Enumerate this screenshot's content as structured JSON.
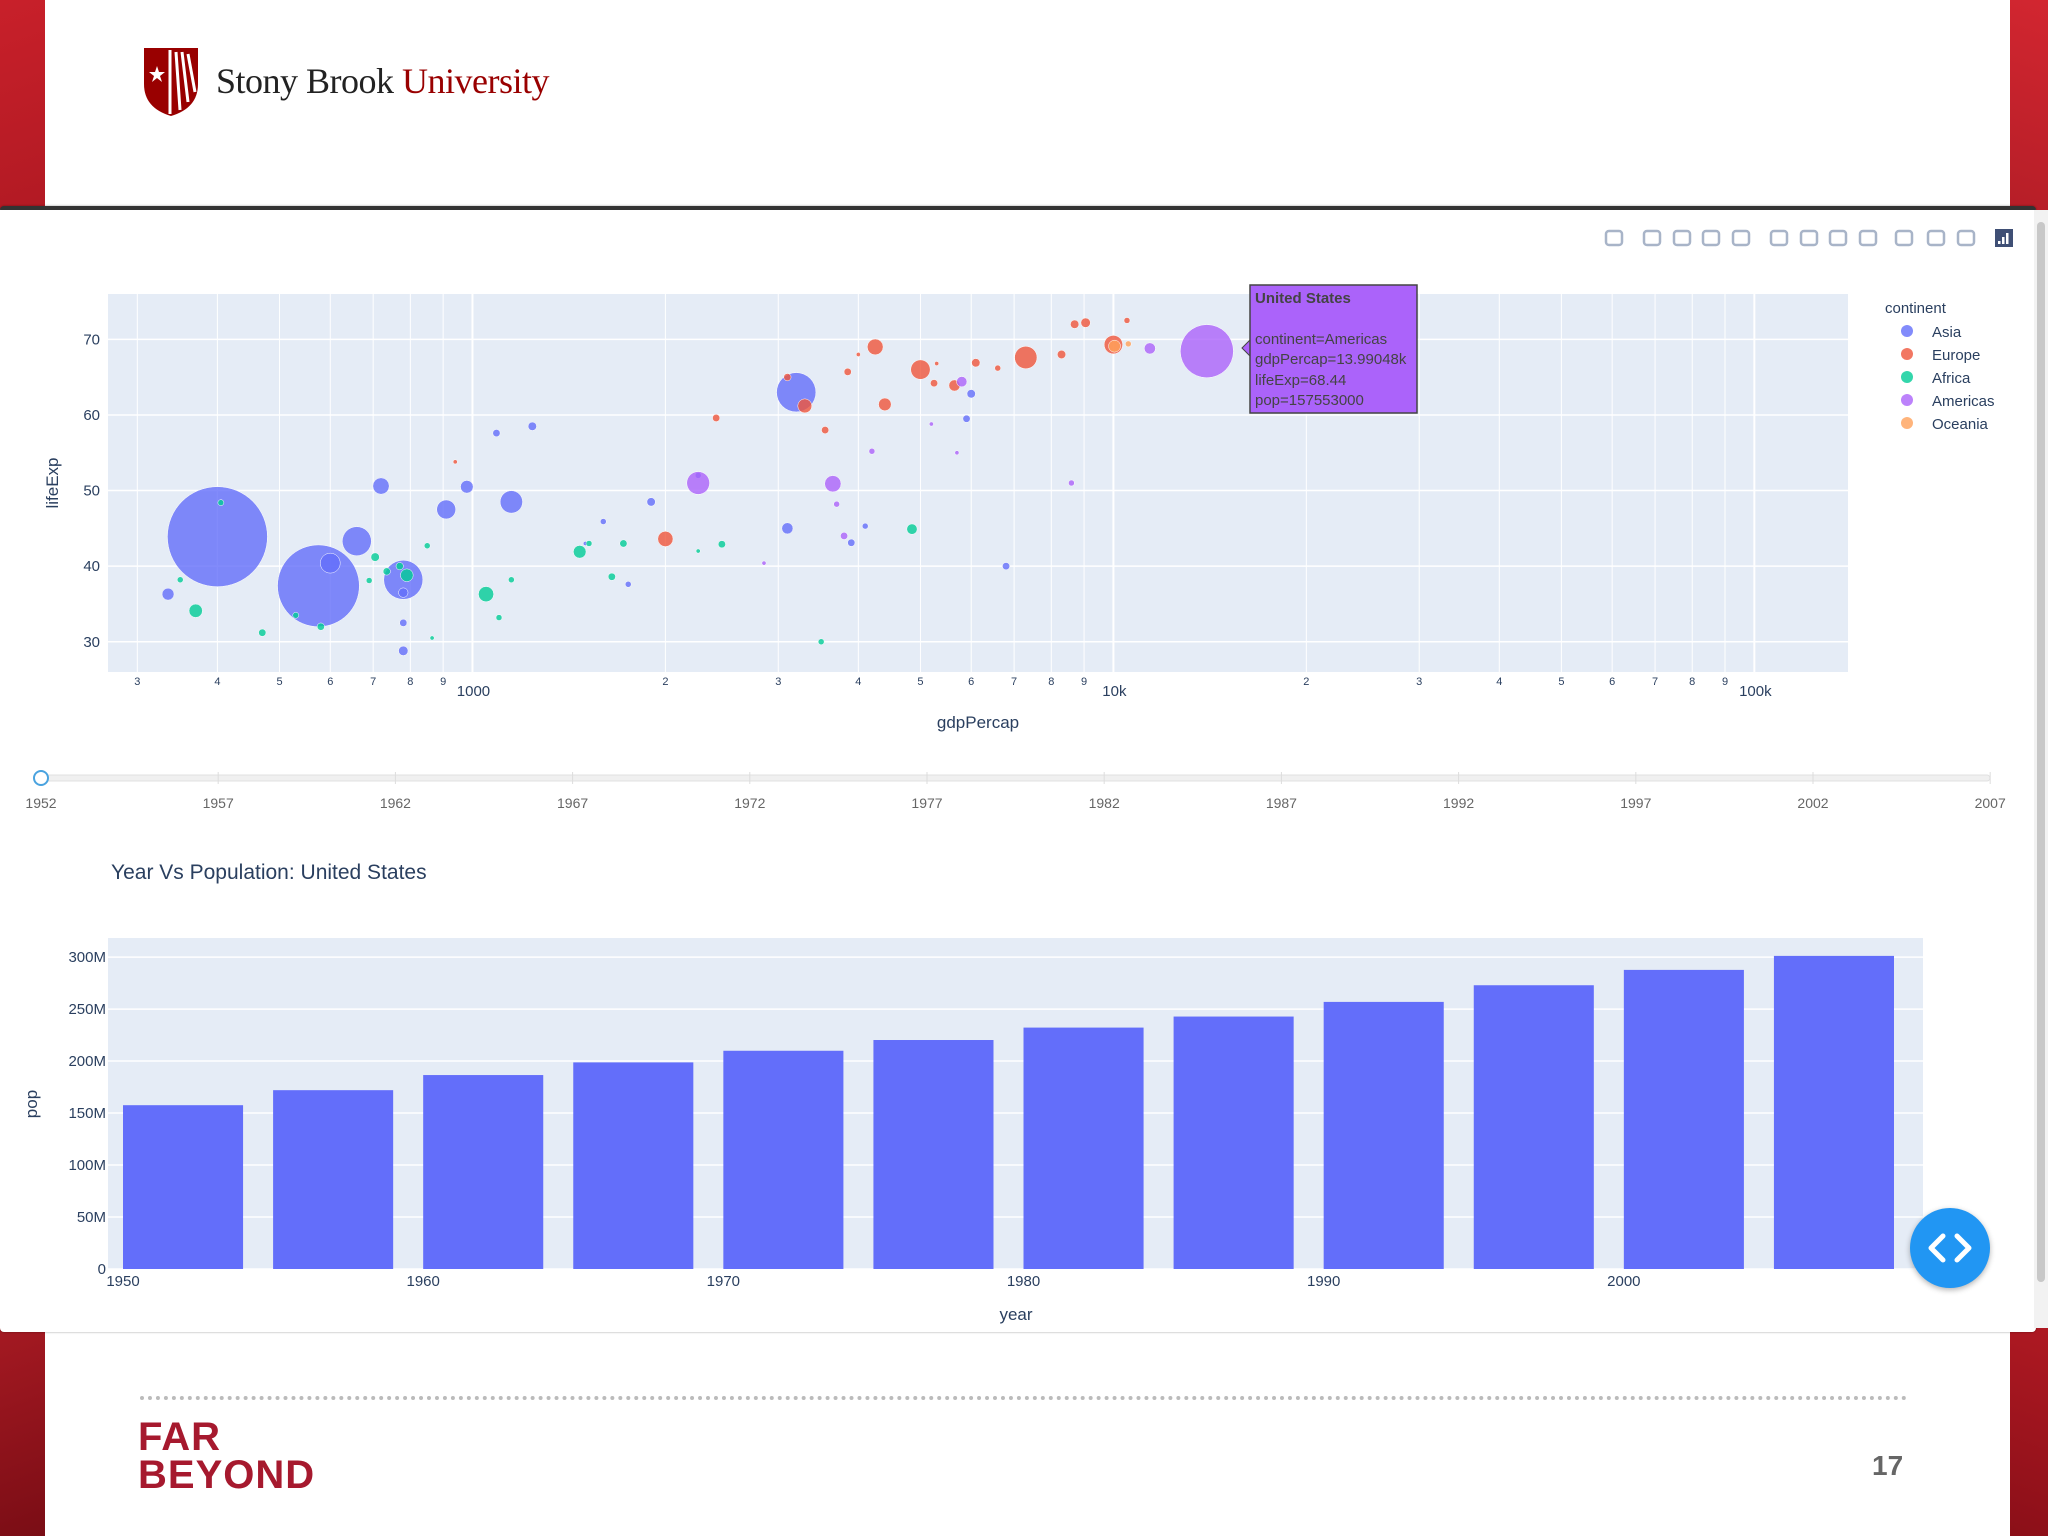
{
  "branding": {
    "name_part1": "Stony Brook",
    "name_part2": "University",
    "footer_line1": "FAR",
    "footer_line2": "BEYOND",
    "page_number": "17"
  },
  "toolbar": {
    "icons": [
      "camera-icon",
      "zoom-icon",
      "pan-icon",
      "box-select-icon",
      "lasso-icon",
      "zoom-in-icon",
      "zoom-out-icon",
      "autoscale-icon",
      "reset-axes-icon",
      "spike-lines-icon",
      "hover-closest-icon",
      "hover-compare-icon",
      "plotly-logo-icon"
    ]
  },
  "legend": {
    "title": "continent",
    "items": [
      {
        "label": "Asia",
        "color": "#636efa"
      },
      {
        "label": "Europe",
        "color": "#ef553b"
      },
      {
        "label": "Africa",
        "color": "#00cc96"
      },
      {
        "label": "Americas",
        "color": "#ab63fa"
      },
      {
        "label": "Oceania",
        "color": "#ffa15a"
      }
    ]
  },
  "tooltip": {
    "title": "United States",
    "line1": "continent=Americas",
    "line2": "gdpPercap=13.99048k",
    "line3": "lifeExp=68.44",
    "line4": "pop=157553000"
  },
  "slider": {
    "years": [
      "1952",
      "1957",
      "1962",
      "1967",
      "1972",
      "1977",
      "1982",
      "1987",
      "1992",
      "1997",
      "2002",
      "2007"
    ],
    "current": "1952"
  },
  "chart_data": [
    {
      "type": "scatter",
      "xlabel": "gdpPercap",
      "ylabel": "lifeExp",
      "xscale": "log",
      "xlim": [
        270,
        140000
      ],
      "ylim": [
        26,
        76
      ],
      "x_major_ticks": [
        {
          "v": 1000,
          "label": "1000"
        },
        {
          "v": 10000,
          "label": "10k"
        },
        {
          "v": 100000,
          "label": "100k"
        }
      ],
      "x_minor_ticks": [
        {
          "v": 300,
          "label": "3"
        },
        {
          "v": 400,
          "label": "4"
        },
        {
          "v": 500,
          "label": "5"
        },
        {
          "v": 600,
          "label": "6"
        },
        {
          "v": 700,
          "label": "7"
        },
        {
          "v": 800,
          "label": "8"
        },
        {
          "v": 900,
          "label": "9"
        },
        {
          "v": 2000,
          "label": "2"
        },
        {
          "v": 3000,
          "label": "3"
        },
        {
          "v": 4000,
          "label": "4"
        },
        {
          "v": 5000,
          "label": "5"
        },
        {
          "v": 6000,
          "label": "6"
        },
        {
          "v": 7000,
          "label": "7"
        },
        {
          "v": 8000,
          "label": "8"
        },
        {
          "v": 9000,
          "label": "9"
        },
        {
          "v": 20000,
          "label": "2"
        },
        {
          "v": 30000,
          "label": "3"
        },
        {
          "v": 40000,
          "label": "4"
        },
        {
          "v": 50000,
          "label": "5"
        },
        {
          "v": 60000,
          "label": "6"
        },
        {
          "v": 70000,
          "label": "7"
        },
        {
          "v": 80000,
          "label": "8"
        },
        {
          "v": 90000,
          "label": "9"
        }
      ],
      "y_ticks": [
        30,
        40,
        50,
        60,
        70
      ],
      "series": [
        {
          "name": "Asia",
          "color": "#636efa",
          "points": [
            [
              400,
              43.9,
              556
            ],
            [
              575,
              37.4,
              372
            ],
            [
              780,
              38.2,
              85
            ],
            [
              660,
              43.3,
              47
            ],
            [
              600,
              40.4,
              22
            ],
            [
              335,
              36.3,
              8
            ],
            [
              910,
              47.5,
              20
            ],
            [
              1150,
              48.5,
              28
            ],
            [
              980,
              50.5,
              9
            ],
            [
              720,
              50.6,
              15
            ],
            [
              1090,
              57.6,
              3
            ],
            [
              1240,
              58.5,
              4
            ],
            [
              3200,
              63.0,
              86
            ],
            [
              3100,
              45.0,
              7
            ],
            [
              780,
              32.5,
              3
            ],
            [
              780,
              28.8,
              5
            ],
            [
              3900,
              43.1,
              3
            ],
            [
              4100,
              45.3,
              2
            ],
            [
              6000,
              62.8,
              4
            ],
            [
              1900,
              48.5,
              4
            ],
            [
              1600,
              45.9,
              2
            ],
            [
              2250,
              52.0,
              2
            ],
            [
              5900,
              59.5,
              3
            ],
            [
              6800,
              40.0,
              3
            ],
            [
              780,
              36.5,
              5
            ],
            [
              1500,
              43.0,
              1
            ],
            [
              1750,
              37.6,
              2
            ]
          ]
        },
        {
          "name": "Europe",
          "color": "#ef553b",
          "points": [
            [
              3300,
              61.2,
              11
            ],
            [
              3850,
              65.7,
              3
            ],
            [
              4250,
              69.0,
              14
            ],
            [
              4400,
              61.4,
              9
            ],
            [
              5000,
              66.0,
              21
            ],
            [
              5250,
              64.2,
              3
            ],
            [
              5650,
              63.9,
              7
            ],
            [
              5300,
              66.8,
              1
            ],
            [
              6100,
              66.9,
              4
            ],
            [
              6600,
              66.2,
              2
            ],
            [
              7300,
              67.6,
              28
            ],
            [
              8300,
              68.0,
              4
            ],
            [
              8700,
              72.0,
              4
            ],
            [
              9050,
              72.2,
              5
            ],
            [
              10000,
              69.3,
              19
            ],
            [
              10500,
              72.5,
              2
            ],
            [
              3550,
              58.0,
              3
            ],
            [
              2000,
              43.6,
              13
            ],
            [
              2400,
              59.6,
              3
            ],
            [
              940,
              53.8,
              1
            ],
            [
              3100,
              65.0,
              3
            ],
            [
              4000,
              68.0,
              1
            ]
          ]
        },
        {
          "name": "Africa",
          "color": "#00cc96",
          "points": [
            [
              370,
              34.1,
              10
            ],
            [
              350,
              38.2,
              2
            ],
            [
              470,
              31.2,
              3
            ],
            [
              580,
              32.0,
              3
            ],
            [
              705,
              41.2,
              4
            ],
            [
              735,
              39.3,
              3
            ],
            [
              770,
              40.0,
              3
            ],
            [
              790,
              38.8,
              9
            ],
            [
              850,
              42.7,
              2
            ],
            [
              1050,
              36.3,
              13
            ],
            [
              1150,
              38.2,
              2
            ],
            [
              1470,
              41.9,
              9
            ],
            [
              1520,
              43.0,
              2
            ],
            [
              1720,
              43.0,
              3
            ],
            [
              1650,
              38.6,
              3
            ],
            [
              2450,
              42.9,
              3
            ],
            [
              3500,
              30.0,
              2
            ],
            [
              4850,
              44.9,
              6
            ],
            [
              690,
              38.1,
              2
            ],
            [
              1100,
              33.2,
              2
            ],
            [
              530,
              33.5,
              2
            ],
            [
              405,
              48.4,
              2
            ],
            [
              865,
              30.5,
              1
            ],
            [
              2250,
              42.0,
              1
            ]
          ]
        },
        {
          "name": "Americas",
          "color": "#ab63fa",
          "points": [
            [
              13990,
              68.44,
              157
            ],
            [
              11400,
              68.8,
              7
            ],
            [
              2250,
              51.0,
              29
            ],
            [
              3650,
              50.9,
              15
            ],
            [
              3700,
              48.2,
              2
            ],
            [
              3800,
              44.0,
              3
            ],
            [
              5800,
              64.4,
              6
            ],
            [
              4200,
              55.2,
              2
            ],
            [
              5200,
              58.8,
              1
            ],
            [
              2850,
              40.4,
              1
            ],
            [
              8600,
              51.0,
              2
            ],
            [
              5700,
              55.0,
              1
            ]
          ]
        },
        {
          "name": "Oceania",
          "color": "#ffa15a",
          "points": [
            [
              10040,
              69.1,
              8
            ],
            [
              10550,
              69.4,
              2
            ]
          ]
        }
      ]
    },
    {
      "type": "bar",
      "title": "Year Vs Population: United States",
      "xlabel": "year",
      "ylabel": "pop",
      "categories": [
        1952,
        1957,
        1962,
        1967,
        1972,
        1977,
        1982,
        1987,
        1992,
        1997,
        2002,
        2007
      ],
      "values": [
        157553000,
        171984000,
        186538000,
        198712000,
        209896000,
        220239000,
        232187835,
        242803533,
        256894189,
        272911760,
        287675526,
        301139947
      ],
      "xlim": [
        1949.5,
        2009.5
      ],
      "ylim": [
        0,
        302000000
      ],
      "x_ticks": [
        {
          "v": 1950,
          "label": "1950"
        },
        {
          "v": 1960,
          "label": "1960"
        },
        {
          "v": 1970,
          "label": "1970"
        },
        {
          "v": 1980,
          "label": "1980"
        },
        {
          "v": 1990,
          "label": "1990"
        },
        {
          "v": 2000,
          "label": "2000"
        }
      ],
      "y_ticks": [
        {
          "v": 0,
          "label": "0"
        },
        {
          "v": 50000000,
          "label": "50M"
        },
        {
          "v": 100000000,
          "label": "100M"
        },
        {
          "v": 150000000,
          "label": "150M"
        },
        {
          "v": 200000000,
          "label": "200M"
        },
        {
          "v": 250000000,
          "label": "250M"
        },
        {
          "v": 300000000,
          "label": "300M"
        }
      ],
      "bar_color": "#636efa"
    }
  ]
}
